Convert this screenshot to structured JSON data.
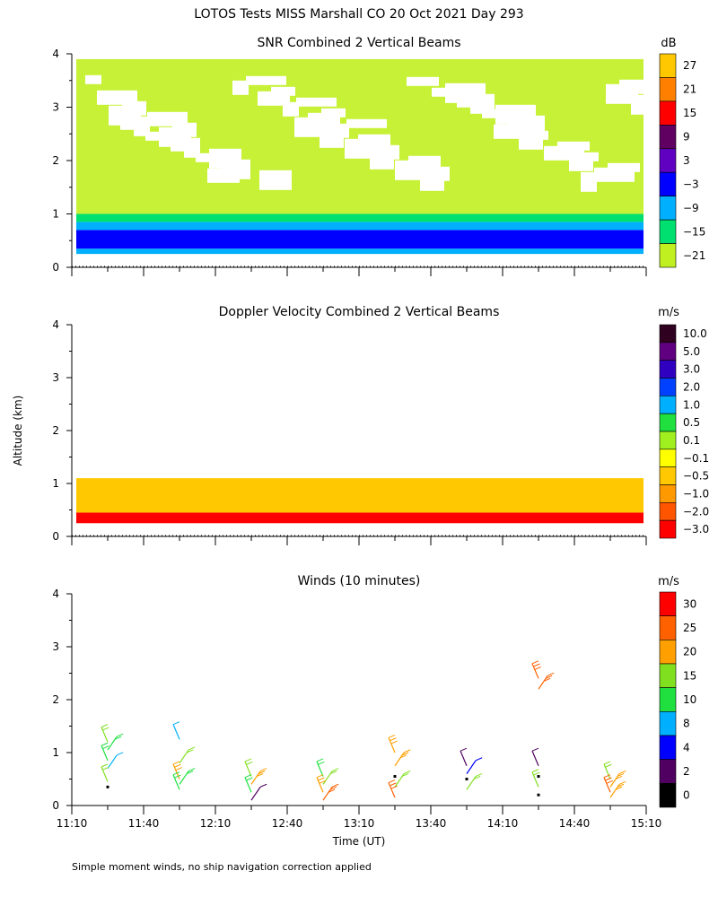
{
  "figure": {
    "title": "LOTOS Tests MISS Marshall CO  20 Oct 2021 Day 293",
    "shared_ylabel": "Altitude (km)",
    "shared_xlabel": "Time (UT)",
    "footnote": "Simple moment winds, no ship navigation correction applied",
    "x_ticks": [
      "11:10",
      "11:40",
      "12:10",
      "12:40",
      "13:10",
      "13:40",
      "14:10",
      "14:40",
      "15:10"
    ],
    "y_ticks": [
      "0",
      "1",
      "2",
      "3",
      "4"
    ]
  },
  "chart_data": [
    {
      "type": "heatmap",
      "title": "SNR Combined 2 Vertical Beams",
      "xlabel": "Time (UT)",
      "ylabel": "Altitude (km)",
      "x_range": [
        "11:10",
        "15:10"
      ],
      "ylim": [
        0,
        4
      ],
      "colorbar": {
        "unit": "dB",
        "ticks": [
          "27",
          "21",
          "15",
          "9",
          "3",
          "−3",
          "−9",
          "−15",
          "−21"
        ],
        "colors": [
          "#ffc800",
          "#ff8000",
          "#ff0000",
          "#600060",
          "#6000c0",
          "#0000ff",
          "#00b0ff",
          "#00e070",
          "#c0f020"
        ]
      },
      "layers": [
        {
          "altitude_km": [
            0.25,
            0.35
          ],
          "snr_db": -9
        },
        {
          "altitude_km": [
            0.35,
            0.7
          ],
          "snr_db": -3
        },
        {
          "altitude_km": [
            0.7,
            0.85
          ],
          "snr_db": -9
        },
        {
          "altitude_km": [
            0.85,
            1.0
          ],
          "snr_db": -15
        },
        {
          "altitude_km": [
            1.0,
            3.9
          ],
          "snr_db": -21
        }
      ]
    },
    {
      "type": "heatmap",
      "title": "Doppler Velocity Combined 2 Vertical Beams",
      "xlabel": "Time (UT)",
      "ylabel": "Altitude (km)",
      "x_range": [
        "11:10",
        "15:10"
      ],
      "ylim": [
        0,
        4
      ],
      "colorbar": {
        "unit": "m/s",
        "ticks": [
          "10.0",
          "5.0",
          "3.0",
          "2.0",
          "1.0",
          "0.5",
          "0.1",
          "−0.1",
          "−0.5",
          "−1.0",
          "−2.0",
          "−3.0"
        ],
        "colors": [
          "#300020",
          "#600080",
          "#3000c0",
          "#0040ff",
          "#00b0ff",
          "#20e040",
          "#a0f020",
          "#ffff00",
          "#ffc800",
          "#ff9900",
          "#ff5500",
          "#ff0000"
        ]
      },
      "layers": [
        {
          "altitude_km": [
            0.25,
            0.45
          ],
          "velocity_ms": -3.0
        },
        {
          "altitude_km": [
            0.45,
            1.1
          ],
          "velocity_ms": -0.5
        }
      ]
    },
    {
      "type": "scatter",
      "title": "Winds (10 minutes)",
      "xlabel": "Time (UT)",
      "ylabel": "Altitude (km)",
      "x_range": [
        "11:10",
        "15:10"
      ],
      "ylim": [
        0,
        4
      ],
      "colorbar": {
        "unit": "m/s",
        "ticks": [
          "30",
          "25",
          "20",
          "15",
          "10",
          "8",
          "4",
          "2",
          "0"
        ],
        "colors": [
          "#ff0000",
          "#ff6000",
          "#ffa000",
          "#80e020",
          "#20e040",
          "#00b0ff",
          "#0000ff",
          "#500060",
          "#000000"
        ]
      },
      "profiles": [
        {
          "time": "11:25",
          "barbs": [
            {
              "alt": 1.2,
              "spd": 15
            },
            {
              "alt": 1.05,
              "spd": 10
            },
            {
              "alt": 0.85,
              "spd": 10
            },
            {
              "alt": 0.7,
              "spd": 8
            },
            {
              "alt": 0.45,
              "spd": 15
            },
            {
              "alt": 0.35,
              "spd": 0
            }
          ]
        },
        {
          "time": "11:55",
          "barbs": [
            {
              "alt": 1.25,
              "spd": 8
            },
            {
              "alt": 0.8,
              "spd": 15
            },
            {
              "alt": 0.5,
              "spd": 20
            },
            {
              "alt": 0.4,
              "spd": 10
            },
            {
              "alt": 0.3,
              "spd": 10
            }
          ]
        },
        {
          "time": "12:25",
          "barbs": [
            {
              "alt": 0.55,
              "spd": 15
            },
            {
              "alt": 0.4,
              "spd": 20
            },
            {
              "alt": 0.25,
              "spd": 10
            },
            {
              "alt": 0.1,
              "spd": 2
            }
          ]
        },
        {
          "time": "12:55",
          "barbs": [
            {
              "alt": 0.55,
              "spd": 10
            },
            {
              "alt": 0.4,
              "spd": 15
            },
            {
              "alt": 0.25,
              "spd": 20
            },
            {
              "alt": 0.1,
              "spd": 25
            }
          ]
        },
        {
          "time": "13:25",
          "barbs": [
            {
              "alt": 1.0,
              "spd": 20
            },
            {
              "alt": 0.75,
              "spd": 20
            },
            {
              "alt": 0.55,
              "spd": 0
            },
            {
              "alt": 0.35,
              "spd": 15
            },
            {
              "alt": 0.15,
              "spd": 25
            }
          ]
        },
        {
          "time": "13:55",
          "barbs": [
            {
              "alt": 0.75,
              "spd": 2
            },
            {
              "alt": 0.6,
              "spd": 4
            },
            {
              "alt": 0.5,
              "spd": 0
            },
            {
              "alt": 0.3,
              "spd": 15
            }
          ]
        },
        {
          "time": "14:25",
          "barbs": [
            {
              "alt": 2.4,
              "spd": 25
            },
            {
              "alt": 2.2,
              "spd": 25
            },
            {
              "alt": 0.75,
              "spd": 2
            },
            {
              "alt": 0.55,
              "spd": 0
            },
            {
              "alt": 0.35,
              "spd": 15
            },
            {
              "alt": 0.2,
              "spd": 0
            }
          ]
        },
        {
          "time": "14:55",
          "barbs": [
            {
              "alt": 0.5,
              "spd": 15
            },
            {
              "alt": 0.35,
              "spd": 20
            },
            {
              "alt": 0.25,
              "spd": 25
            },
            {
              "alt": 0.15,
              "spd": 20
            }
          ]
        }
      ]
    }
  ]
}
